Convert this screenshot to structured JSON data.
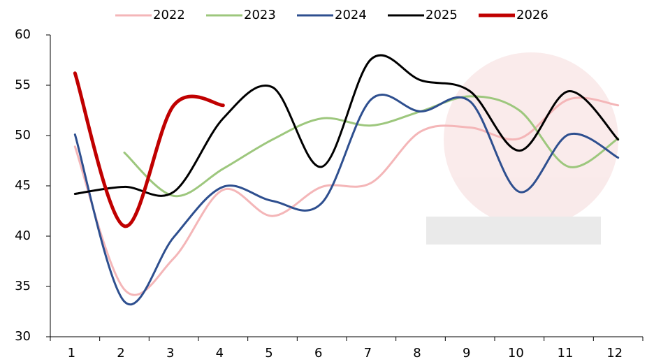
{
  "chart_data": {
    "type": "line",
    "categories": [
      "1",
      "2",
      "3",
      "4",
      "5",
      "6",
      "7",
      "8",
      "9",
      "10",
      "11",
      "12"
    ],
    "series": [
      {
        "name": "2022",
        "color": "#f4b6b8",
        "width": 3,
        "values": [
          48.9,
          34.7,
          37.8,
          44.6,
          42,
          44.9,
          45.3,
          50.4,
          50.8,
          49.7,
          53.6,
          53
        ]
      },
      {
        "name": "2023",
        "color": "#9dc77d",
        "width": 3,
        "values": [
          null,
          48.3,
          44,
          46.7,
          49.6,
          51.7,
          51,
          52.4,
          53.9,
          52.5,
          46.9,
          49.7
        ]
      },
      {
        "name": "2024",
        "color": "#2e4f8f",
        "width": 3,
        "values": [
          50.1,
          33.5,
          39.9,
          44.9,
          43.5,
          43.3,
          53.6,
          52.4,
          53.4,
          44.4,
          50.1,
          47.8
        ]
      },
      {
        "name": "2025",
        "color": "#000000",
        "width": 3,
        "values": [
          44.2,
          44.9,
          44.4,
          51.7,
          54.8,
          46.9,
          57.6,
          55.5,
          54.4,
          48.5,
          54.4,
          49.6
        ]
      },
      {
        "name": "2026",
        "color": "#c00000",
        "width": 5,
        "values": [
          56.2,
          41,
          53,
          53,
          null,
          null,
          null,
          null,
          null,
          null,
          null,
          null
        ]
      }
    ],
    "ylim": [
      30,
      60
    ],
    "yticks": [
      30,
      35,
      40,
      45,
      50,
      55,
      60
    ],
    "legend": "top"
  }
}
